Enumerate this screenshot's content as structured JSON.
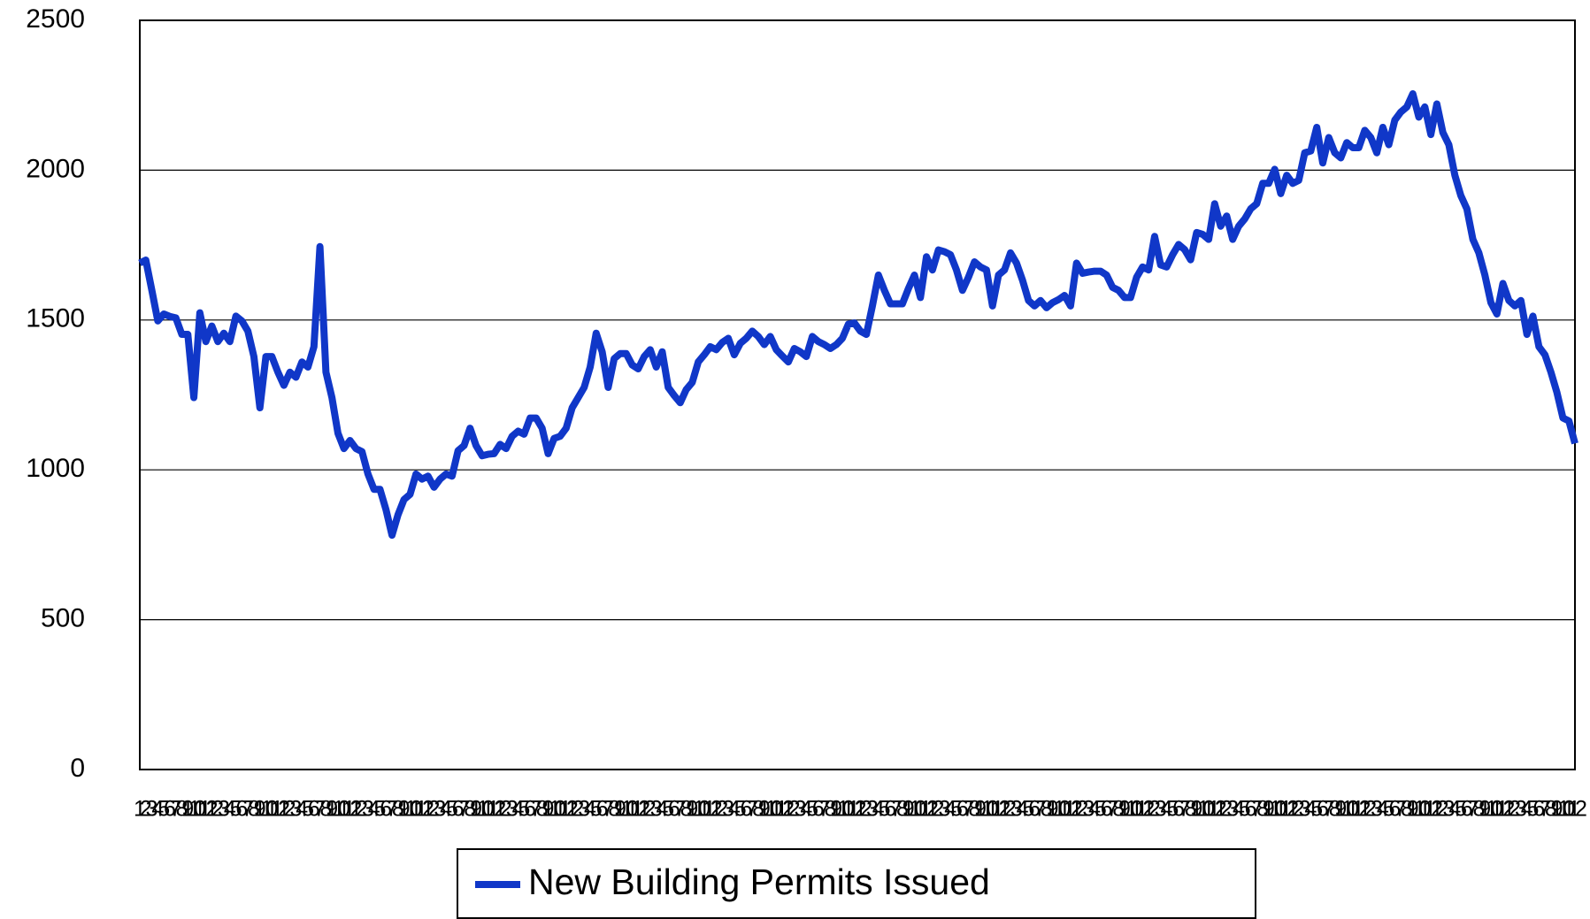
{
  "chart_data": {
    "type": "line",
    "categories": [
      "1",
      "2",
      "3",
      "4",
      "5",
      "6",
      "7",
      "8",
      "9",
      "10",
      "11",
      "12",
      "1",
      "2",
      "3",
      "4",
      "5",
      "6",
      "7",
      "8",
      "9",
      "10",
      "11",
      "12",
      "1",
      "2",
      "3",
      "4",
      "5",
      "6",
      "7",
      "8",
      "9",
      "10",
      "11",
      "12",
      "1",
      "2",
      "3",
      "4",
      "5",
      "6",
      "7",
      "8",
      "9",
      "10",
      "11",
      "12",
      "1",
      "2",
      "3",
      "4",
      "5",
      "6",
      "7",
      "8",
      "9",
      "10",
      "11",
      "12",
      "1",
      "2",
      "3",
      "4",
      "5",
      "6",
      "7",
      "8",
      "9",
      "10",
      "11",
      "12",
      "1",
      "2",
      "3",
      "4",
      "5",
      "6",
      "7",
      "8",
      "9",
      "10",
      "11",
      "12",
      "1",
      "2",
      "3",
      "4",
      "5",
      "6",
      "7",
      "8",
      "9",
      "10",
      "11",
      "12",
      "1",
      "2",
      "3",
      "4",
      "5",
      "6",
      "7",
      "8",
      "9",
      "10",
      "11",
      "12",
      "1",
      "2",
      "3",
      "4",
      "5",
      "6",
      "7",
      "8",
      "9",
      "10",
      "11",
      "12",
      "1",
      "2",
      "3",
      "4",
      "5",
      "6",
      "7",
      "8",
      "9",
      "10",
      "11",
      "12",
      "1",
      "2",
      "3",
      "4",
      "5",
      "6",
      "7",
      "8",
      "9",
      "10",
      "11",
      "12",
      "1",
      "2",
      "3",
      "4",
      "5",
      "6",
      "7",
      "8",
      "9",
      "10",
      "11",
      "12",
      "1",
      "2",
      "3",
      "4",
      "5",
      "6",
      "7",
      "8",
      "9",
      "10",
      "11",
      "12",
      "1",
      "2",
      "3",
      "4",
      "5",
      "6",
      "7",
      "8",
      "9",
      "10",
      "11",
      "12",
      "1",
      "2",
      "3",
      "4",
      "5",
      "6",
      "7",
      "8",
      "9",
      "10",
      "11",
      "12",
      "1",
      "2",
      "3",
      "4",
      "5",
      "6",
      "7",
      "8",
      "9",
      "10",
      "11",
      "12",
      "1",
      "2",
      "3",
      "4",
      "5",
      "6",
      "7",
      "8",
      "9",
      "10",
      "11",
      "12",
      "1",
      "2",
      "3",
      "4",
      "5",
      "6",
      "7",
      "8",
      "9",
      "10",
      "11",
      "12",
      "1",
      "2",
      "3",
      "4",
      "5",
      "6",
      "7",
      "8",
      "9",
      "10",
      "11",
      "12"
    ],
    "series": [
      {
        "name": "New Building Permits Issued",
        "color": "#1037c8",
        "values": [
          1690,
          1700,
          1600,
          1497,
          1520,
          1512,
          1507,
          1452,
          1452,
          1241,
          1524,
          1428,
          1480,
          1428,
          1456,
          1428,
          1513,
          1497,
          1463,
          1378,
          1207,
          1378,
          1378,
          1326,
          1282,
          1326,
          1309,
          1360,
          1343,
          1411,
          1745,
          1326,
          1241,
          1122,
          1071,
          1098,
          1071,
          1061,
          986,
          935,
          935,
          867,
          782,
          850,
          901,
          918,
          986,
          969,
          979,
          942,
          969,
          986,
          979,
          1064,
          1081,
          1139,
          1081,
          1047,
          1052,
          1054,
          1085,
          1071,
          1112,
          1129,
          1119,
          1173,
          1173,
          1139,
          1054,
          1105,
          1112,
          1139,
          1207,
          1241,
          1275,
          1343,
          1456,
          1394,
          1275,
          1371,
          1388,
          1388,
          1350,
          1337,
          1378,
          1401,
          1343,
          1394,
          1275,
          1248,
          1224,
          1268,
          1292,
          1360,
          1384,
          1411,
          1401,
          1425,
          1439,
          1384,
          1422,
          1439,
          1463,
          1445,
          1418,
          1445,
          1401,
          1380,
          1360,
          1405,
          1394,
          1378,
          1445,
          1428,
          1418,
          1405,
          1418,
          1439,
          1486,
          1490,
          1463,
          1452,
          1547,
          1650,
          1599,
          1554,
          1554,
          1554,
          1605,
          1650,
          1575,
          1711,
          1667,
          1734,
          1728,
          1718,
          1667,
          1599,
          1643,
          1694,
          1677,
          1667,
          1547,
          1650,
          1667,
          1724,
          1690,
          1633,
          1565,
          1547,
          1565,
          1541,
          1558,
          1568,
          1582,
          1547,
          1690,
          1656,
          1660,
          1663,
          1663,
          1650,
          1609,
          1599,
          1575,
          1575,
          1643,
          1677,
          1667,
          1779,
          1684,
          1677,
          1718,
          1752,
          1735,
          1701,
          1792,
          1786,
          1769,
          1888,
          1813,
          1847,
          1769,
          1813,
          1837,
          1871,
          1888,
          1956,
          1956,
          2003,
          1922,
          1983,
          1956,
          1966,
          2058,
          2064,
          2143,
          2024,
          2109,
          2058,
          2041,
          2092,
          2075,
          2075,
          2133,
          2109,
          2058,
          2143,
          2085,
          2167,
          2194,
          2211,
          2255,
          2177,
          2211,
          2119,
          2221,
          2126,
          2085,
          1983,
          1915,
          1871,
          1769,
          1724,
          1650,
          1558,
          1520,
          1622,
          1565,
          1547,
          1565,
          1452,
          1513,
          1411,
          1384,
          1326,
          1258,
          1173,
          1163,
          1088
        ]
      }
    ],
    "ylim": [
      0,
      2500
    ],
    "yticks": [
      0,
      500,
      1000,
      1500,
      2000,
      2500
    ],
    "grid": true,
    "legend": "bottom"
  }
}
